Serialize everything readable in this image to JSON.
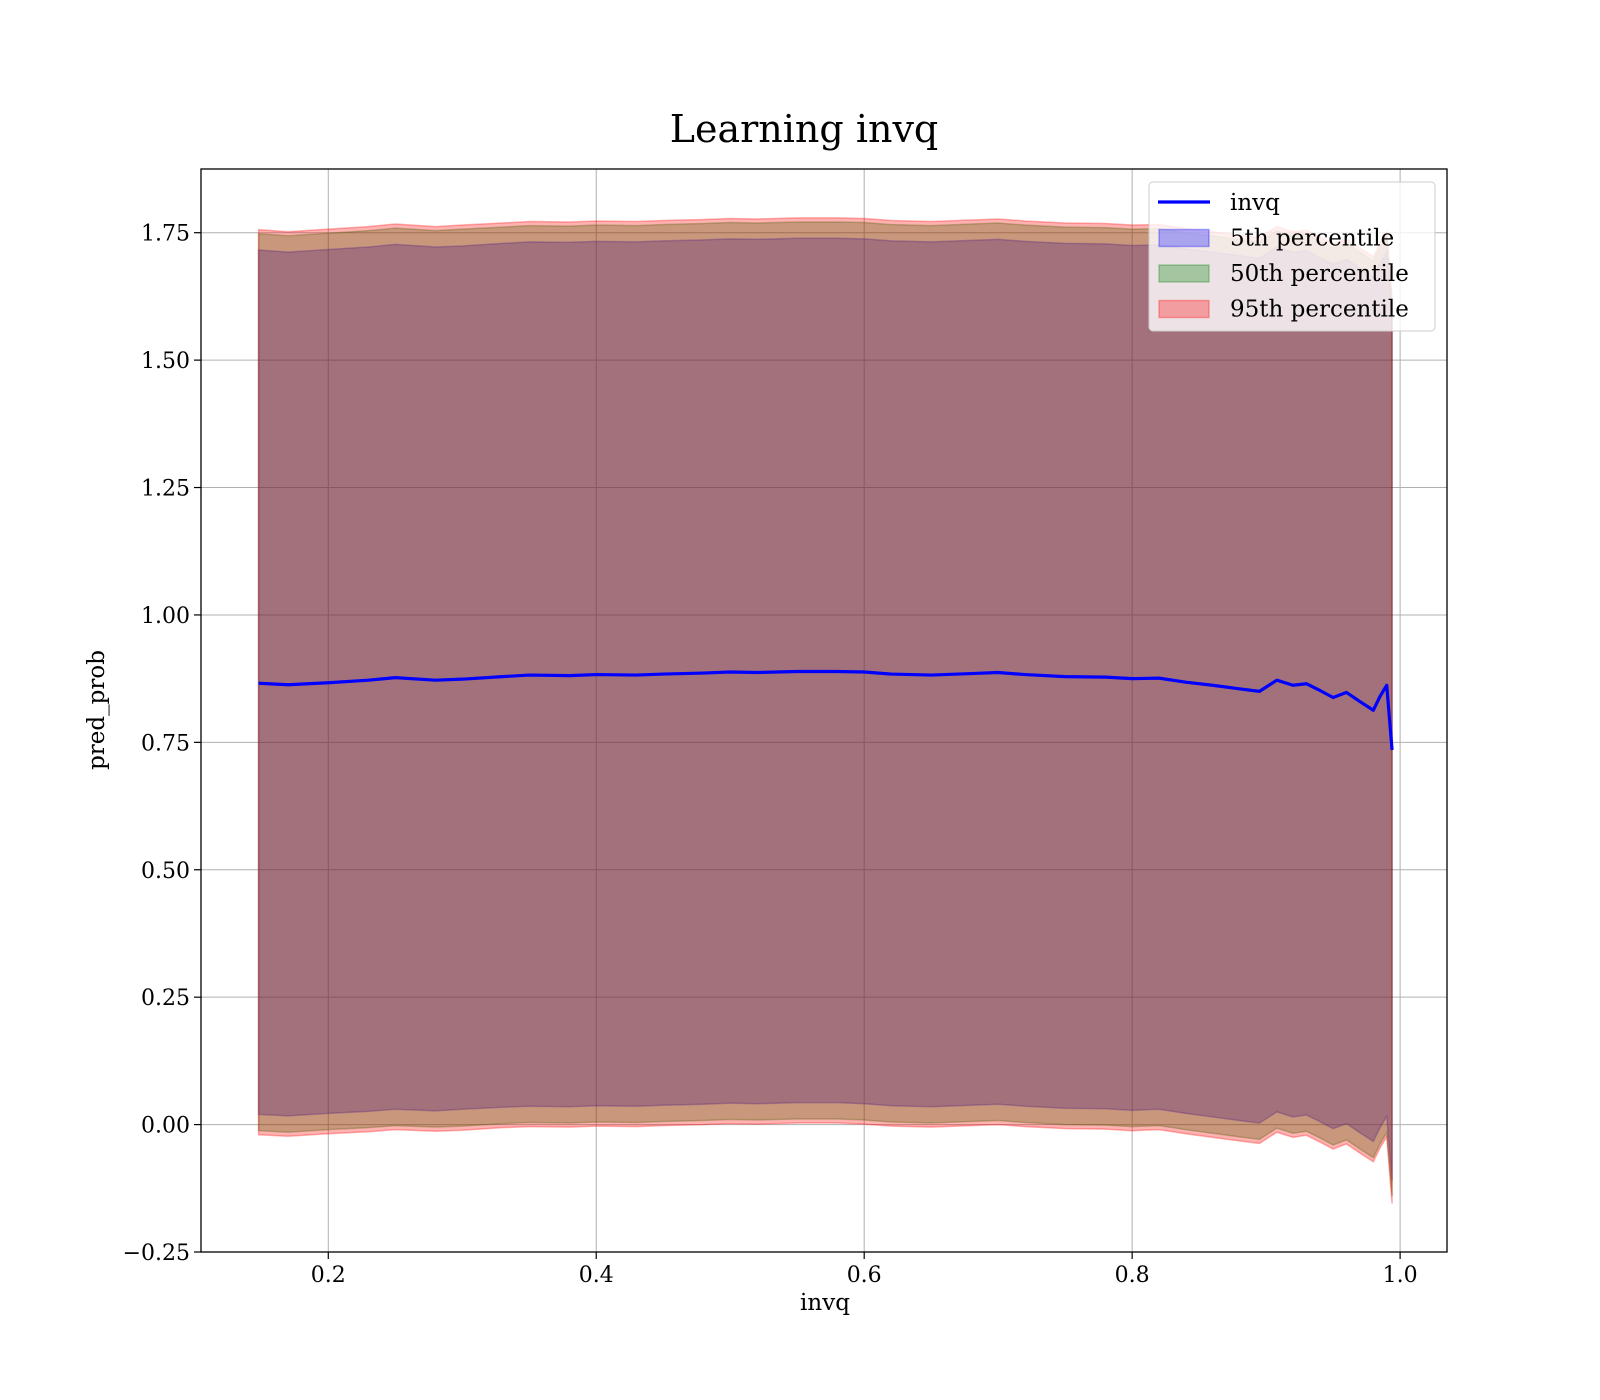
{
  "chart_data": {
    "type": "area",
    "title": "Learning invq",
    "xlabel": "invq",
    "ylabel": "pred_prob",
    "xlim": [
      0.105,
      1.035
    ],
    "ylim": [
      -0.25,
      1.875
    ],
    "x_ticks": [
      0.2,
      0.4,
      0.6,
      0.8,
      1.0
    ],
    "x_tick_labels": [
      "0.2",
      "0.4",
      "0.6",
      "0.8",
      "1.0"
    ],
    "y_ticks": [
      -0.25,
      0.0,
      0.25,
      0.5,
      0.75,
      1.0,
      1.25,
      1.5,
      1.75
    ],
    "y_tick_labels": [
      "−0.25",
      "0.00",
      "0.25",
      "0.50",
      "0.75",
      "1.00",
      "1.25",
      "1.50",
      "1.75"
    ],
    "grid": true,
    "legend_position": "top-right",
    "x": [
      0.148,
      0.17,
      0.2,
      0.23,
      0.25,
      0.28,
      0.3,
      0.33,
      0.35,
      0.38,
      0.4,
      0.43,
      0.45,
      0.48,
      0.5,
      0.52,
      0.55,
      0.58,
      0.6,
      0.62,
      0.65,
      0.68,
      0.7,
      0.72,
      0.75,
      0.78,
      0.8,
      0.82,
      0.84,
      0.86,
      0.88,
      0.895,
      0.908,
      0.92,
      0.93,
      0.94,
      0.95,
      0.96,
      0.97,
      0.98,
      0.985,
      0.99,
      0.994
    ],
    "series": [
      {
        "name": "invq",
        "color": "#0000ff",
        "values": [
          0.866,
          0.863,
          0.867,
          0.872,
          0.877,
          0.872,
          0.874,
          0.879,
          0.882,
          0.881,
          0.883,
          0.882,
          0.884,
          0.886,
          0.888,
          0.887,
          0.889,
          0.889,
          0.888,
          0.884,
          0.882,
          0.885,
          0.887,
          0.883,
          0.879,
          0.878,
          0.875,
          0.876,
          0.868,
          0.862,
          0.855,
          0.85,
          0.872,
          0.862,
          0.865,
          0.852,
          0.838,
          0.848,
          0.83,
          0.813,
          0.84,
          0.862,
          0.735
        ]
      },
      {
        "name": "5th percentile",
        "color": "#0000ff",
        "lower": [
          0.02,
          0.017,
          0.022,
          0.026,
          0.03,
          0.027,
          0.03,
          0.034,
          0.036,
          0.035,
          0.037,
          0.036,
          0.038,
          0.04,
          0.042,
          0.041,
          0.043,
          0.043,
          0.041,
          0.037,
          0.035,
          0.038,
          0.04,
          0.036,
          0.032,
          0.031,
          0.028,
          0.03,
          0.022,
          0.015,
          0.008,
          0.003,
          0.025,
          0.015,
          0.019,
          0.006,
          -0.008,
          0.002,
          -0.016,
          -0.033,
          -0.006,
          0.016,
          -0.11
        ],
        "upper": [
          1.716,
          1.712,
          1.717,
          1.722,
          1.727,
          1.722,
          1.724,
          1.729,
          1.732,
          1.731,
          1.733,
          1.732,
          1.734,
          1.736,
          1.738,
          1.737,
          1.739,
          1.739,
          1.738,
          1.734,
          1.732,
          1.735,
          1.737,
          1.733,
          1.729,
          1.728,
          1.725,
          1.726,
          1.718,
          1.712,
          1.705,
          1.7,
          1.722,
          1.712,
          1.715,
          1.702,
          1.688,
          1.698,
          1.68,
          1.663,
          1.69,
          1.712,
          1.582
        ]
      },
      {
        "name": "50th percentile",
        "color": "#008000",
        "lower": [
          -0.012,
          -0.015,
          -0.01,
          -0.006,
          -0.002,
          -0.005,
          -0.003,
          0.002,
          0.004,
          0.003,
          0.005,
          0.004,
          0.006,
          0.008,
          0.01,
          0.009,
          0.011,
          0.011,
          0.009,
          0.005,
          0.003,
          0.006,
          0.008,
          0.004,
          0.0,
          -0.001,
          -0.004,
          -0.002,
          -0.01,
          -0.017,
          -0.024,
          -0.029,
          -0.007,
          -0.017,
          -0.013,
          -0.026,
          -0.04,
          -0.03,
          -0.048,
          -0.065,
          -0.038,
          -0.016,
          -0.14
        ],
        "upper": [
          1.748,
          1.744,
          1.749,
          1.754,
          1.759,
          1.754,
          1.757,
          1.761,
          1.764,
          1.763,
          1.765,
          1.764,
          1.766,
          1.768,
          1.77,
          1.769,
          1.771,
          1.771,
          1.77,
          1.766,
          1.764,
          1.767,
          1.769,
          1.765,
          1.761,
          1.76,
          1.757,
          1.758,
          1.75,
          1.744,
          1.737,
          1.732,
          1.754,
          1.744,
          1.747,
          1.734,
          1.72,
          1.73,
          1.712,
          1.695,
          1.722,
          1.744,
          1.614
        ]
      },
      {
        "name": "95th percentile",
        "color": "#ff0000",
        "lower": [
          -0.02,
          -0.023,
          -0.018,
          -0.014,
          -0.01,
          -0.013,
          -0.011,
          -0.006,
          -0.004,
          -0.005,
          -0.003,
          -0.004,
          -0.002,
          0.0,
          0.002,
          0.001,
          0.003,
          0.003,
          0.001,
          -0.003,
          -0.005,
          -0.002,
          0.0,
          -0.004,
          -0.008,
          -0.009,
          -0.012,
          -0.01,
          -0.018,
          -0.025,
          -0.032,
          -0.037,
          -0.015,
          -0.025,
          -0.021,
          -0.034,
          -0.048,
          -0.038,
          -0.056,
          -0.073,
          -0.046,
          -0.024,
          -0.155
        ],
        "upper": [
          1.756,
          1.752,
          1.757,
          1.762,
          1.767,
          1.762,
          1.765,
          1.769,
          1.772,
          1.771,
          1.773,
          1.772,
          1.774,
          1.776,
          1.778,
          1.777,
          1.779,
          1.779,
          1.778,
          1.774,
          1.772,
          1.775,
          1.777,
          1.773,
          1.769,
          1.768,
          1.765,
          1.766,
          1.758,
          1.752,
          1.745,
          1.74,
          1.762,
          1.752,
          1.755,
          1.742,
          1.728,
          1.738,
          1.72,
          1.703,
          1.73,
          1.752,
          1.622
        ]
      }
    ]
  }
}
